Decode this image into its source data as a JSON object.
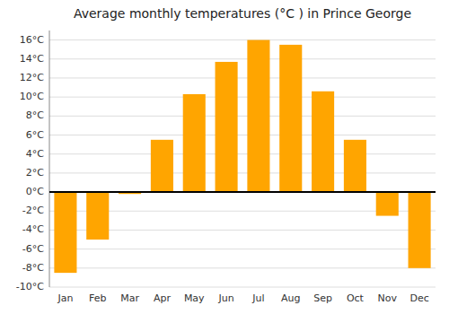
{
  "chart_data": {
    "type": "bar",
    "title": "Average monthly temperatures (°C ) in Prince George",
    "categories": [
      "Jan",
      "Feb",
      "Mar",
      "Apr",
      "May",
      "Jun",
      "Jul",
      "Aug",
      "Sep",
      "Oct",
      "Nov",
      "Dec"
    ],
    "values": [
      -8.5,
      -5.0,
      -0.2,
      5.5,
      10.3,
      13.7,
      16.0,
      15.5,
      10.6,
      5.5,
      -2.5,
      -8.0
    ],
    "color": "#FFA500",
    "ylim": [
      -10,
      17
    ],
    "yticks": [
      {
        "value": -10,
        "label": "-10°C"
      },
      {
        "value": -8,
        "label": "-8°C"
      },
      {
        "value": -6,
        "label": "-6°C"
      },
      {
        "value": -4,
        "label": "-4°C"
      },
      {
        "value": -2,
        "label": "-2°C"
      },
      {
        "value": 0,
        "label": "0°C"
      },
      {
        "value": 2,
        "label": "2°C"
      },
      {
        "value": 4,
        "label": "4°C"
      },
      {
        "value": 6,
        "label": "6°C"
      },
      {
        "value": 8,
        "label": "8°C"
      },
      {
        "value": 10,
        "label": "10°C"
      },
      {
        "value": 12,
        "label": "12°C"
      },
      {
        "value": 14,
        "label": "14°C"
      },
      {
        "value": 16,
        "label": "16°C"
      }
    ],
    "grid": true
  }
}
